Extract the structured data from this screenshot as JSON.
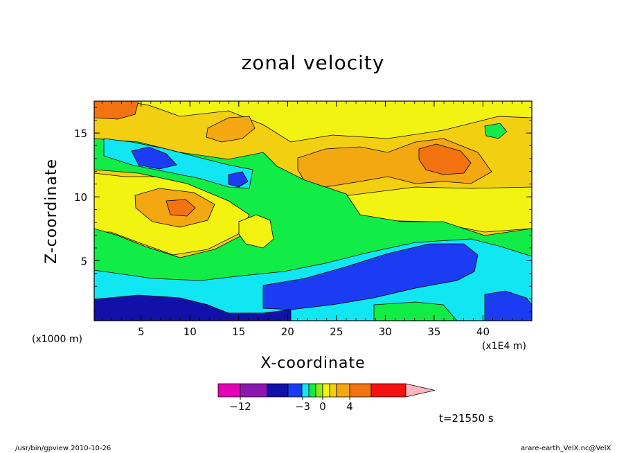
{
  "chart_data": {
    "type": "heatmap",
    "title": "zonal velocity",
    "xlabel": "X-coordinate",
    "ylabel": "Z-coordinate",
    "x_unit": "(x1000 m)",
    "x_secondary_unit": "(x1E4 m)",
    "xlim": [
      0.2,
      45
    ],
    "ylim": [
      0.3,
      17.5
    ],
    "x_ticks": [
      5,
      10,
      15,
      20,
      25,
      30,
      35,
      40
    ],
    "y_ticks": [
      5,
      10,
      15
    ],
    "colorbar": {
      "labels": [
        {
          "value": -12,
          "text": "−12"
        },
        {
          "value": -3,
          "text": "−3"
        },
        {
          "value": 0,
          "text": "0"
        },
        {
          "value": 4,
          "text": "4"
        }
      ],
      "colors": [
        "#e500b5",
        "#8c16b0",
        "#1111a9",
        "#1b3cf2",
        "#11e6f3",
        "#11ec47",
        "#8bee11",
        "#f3f311",
        "#f3cf11",
        "#f3a711",
        "#f37311",
        "#f31111",
        "#ff7676",
        "#ffb4c0"
      ]
    },
    "field_description_levels": [
      {
        "level": "dark-blue",
        "color": "#1111a9"
      },
      {
        "level": "blue",
        "color": "#1b3cf2"
      },
      {
        "level": "cyan",
        "color": "#11e6f3"
      },
      {
        "level": "green",
        "color": "#11ec47"
      },
      {
        "level": "yellow",
        "color": "#f3f311"
      },
      {
        "level": "gold",
        "color": "#f3cf11"
      },
      {
        "level": "orange",
        "color": "#f3a711"
      },
      {
        "level": "dark-orange",
        "color": "#f37311"
      }
    ],
    "time_label": "t=21550 s"
  },
  "footer": {
    "left": "/usr/bin/gpview   2010-10-26",
    "right": "arare-earth_VelX.nc@VelX"
  }
}
